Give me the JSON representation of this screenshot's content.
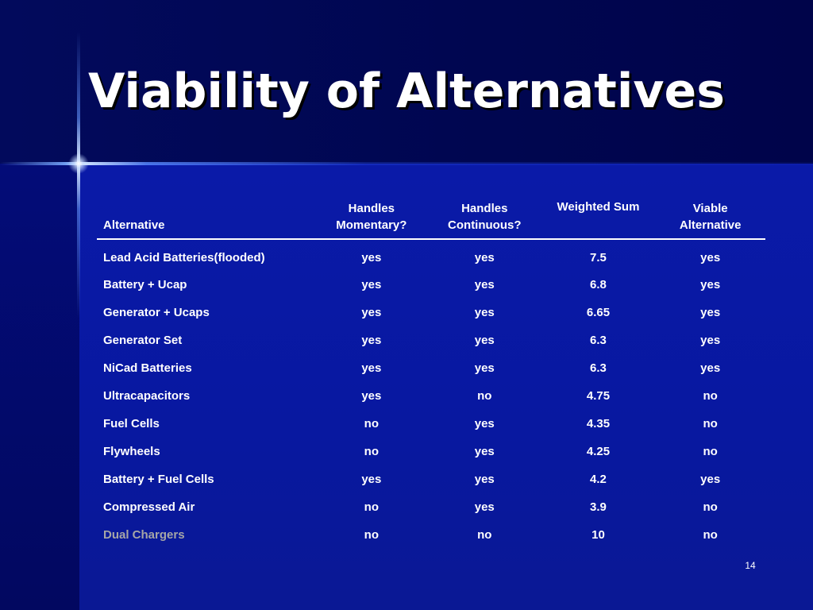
{
  "slide": {
    "title": "Viability of Alternatives",
    "page_number": "14"
  },
  "table": {
    "headers": {
      "alternative": "Alternative",
      "momentary_1": "Handles",
      "momentary_2": "Momentary?",
      "continuous_1": "Handles",
      "continuous_2": "Continuous?",
      "weighted_sum": "Weighted Sum",
      "viable_1": "Viable",
      "viable_2": "Alternative"
    },
    "rows": [
      {
        "name": "Lead Acid Batteries(flooded)",
        "momentary": "yes",
        "continuous": "yes",
        "sum": "7.5",
        "viable": "yes"
      },
      {
        "name": "Battery + Ucap",
        "momentary": "yes",
        "continuous": "yes",
        "sum": "6.8",
        "viable": "yes"
      },
      {
        "name": "Generator + Ucaps",
        "momentary": "yes",
        "continuous": "yes",
        "sum": "6.65",
        "viable": "yes"
      },
      {
        "name": "Generator Set",
        "momentary": "yes",
        "continuous": "yes",
        "sum": "6.3",
        "viable": "yes"
      },
      {
        "name": "NiCad Batteries",
        "momentary": "yes",
        "continuous": "yes",
        "sum": "6.3",
        "viable": "yes"
      },
      {
        "name": "Ultracapacitors",
        "momentary": "yes",
        "continuous": "no",
        "sum": "4.75",
        "viable": "no"
      },
      {
        "name": "Fuel Cells",
        "momentary": "no",
        "continuous": "yes",
        "sum": "4.35",
        "viable": "no"
      },
      {
        "name": "Flywheels",
        "momentary": "no",
        "continuous": "yes",
        "sum": "4.25",
        "viable": "no"
      },
      {
        "name": "Battery + Fuel Cells",
        "momentary": "yes",
        "continuous": "yes",
        "sum": "4.2",
        "viable": "yes"
      },
      {
        "name": "Compressed Air",
        "momentary": "no",
        "continuous": "yes",
        "sum": "3.9",
        "viable": "no"
      },
      {
        "name": "Dual Chargers",
        "momentary": "no",
        "continuous": "no",
        "sum": "10",
        "viable": "no"
      }
    ]
  },
  "colors": {
    "background": "#0a1aa8",
    "header_background": "#000650",
    "text": "#ffffff",
    "dimmed_text": "#a6a6a6"
  }
}
